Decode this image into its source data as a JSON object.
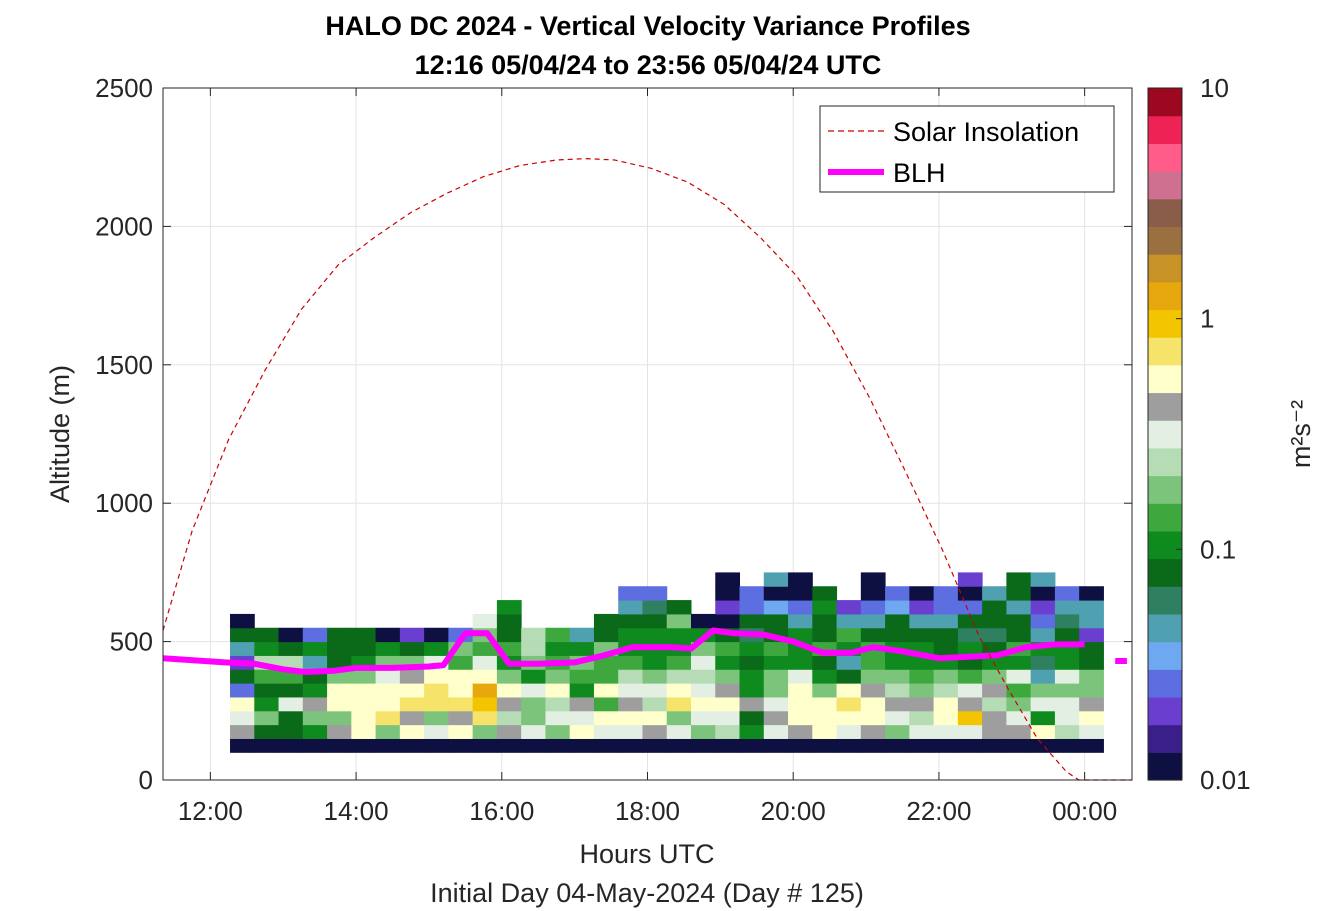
{
  "chart_data": {
    "type": "heatmap",
    "title": "HALO DC 2024 - Vertical Velocity Variance Profiles",
    "subtitle": "12:16 05/04/24 to 23:56 05/04/24  UTC",
    "xlabel": "Hours UTC",
    "footer": "Initial Day 04-May-2024 (Day # 125)",
    "ylabel": "Altitude (m)",
    "x_ticks": [
      "12:00",
      "14:00",
      "16:00",
      "18:00",
      "20:00",
      "22:00",
      "00:00"
    ],
    "x_tick_hours": [
      12,
      14,
      16,
      18,
      20,
      22,
      24
    ],
    "xlim_hours": [
      11.35,
      24.65
    ],
    "y_ticks": [
      "0",
      "500",
      "1000",
      "1500",
      "2000",
      "2500"
    ],
    "ylim": [
      0,
      2500
    ],
    "grid": true,
    "colorbar": {
      "label": "m²s⁻²",
      "scale": "log",
      "range": [
        0.01,
        10
      ],
      "ticks": [
        "0.01",
        "0.1",
        "1",
        "10"
      ],
      "colors": [
        "#0d1040",
        "#3a1f8a",
        "#6a3fd0",
        "#5c6ee0",
        "#6ea8f0",
        "#4fa0b0",
        "#2f8060",
        "#0a6a1a",
        "#0f8a1f",
        "#3ea83e",
        "#7cc47c",
        "#b5dcb5",
        "#e2efe2",
        "#9e9e9e",
        "#ffffcc",
        "#f6e36a",
        "#f3c400",
        "#e7a80e",
        "#c89326",
        "#9a7040",
        "#8a5d4a",
        "#d07090",
        "#ff5c8a",
        "#ee2255",
        "#9c0820"
      ]
    },
    "legend": {
      "placement": "top-right",
      "entries": [
        {
          "label": "Solar Insolation",
          "style": "dashed",
          "color": "#cc0000"
        },
        {
          "label": "BLH",
          "style": "solid-thick",
          "color": "#ff00ff"
        }
      ]
    },
    "heatmap": {
      "time_start_hours": 12.27,
      "time_bin_hours": 0.333,
      "altitude_start_m": 100,
      "altitude_bin_m": 50,
      "value_units": "m²s⁻²",
      "columns": [
        [
          0.01,
          0.4,
          0.3,
          0.5,
          0.03,
          0.08,
          0.02,
          0.05,
          0.09,
          0.01
        ],
        [
          0.01,
          0.08,
          0.2,
          0.12,
          0.07,
          0.15,
          0.25,
          0.1,
          0.09
        ],
        [
          0.01,
          0.07,
          0.09,
          0.3,
          0.07,
          0.15,
          0.25,
          0.09,
          0.01
        ],
        [
          0.01,
          0.12,
          0.2,
          0.4,
          0.1,
          0.07,
          0.05,
          0.12,
          0.03
        ],
        [
          0.01,
          0.4,
          0.2,
          0.6,
          0.5,
          0.2,
          0.08,
          0.07,
          0.09
        ],
        [
          0.01,
          0.5,
          0.6,
          0.6,
          0.5,
          0.2,
          0.1,
          0.07,
          0.08
        ],
        [
          0.01,
          0.2,
          0.8,
          0.6,
          0.6,
          0.3,
          0.2,
          0.1,
          0.01
        ],
        [
          0.01,
          0.6,
          0.4,
          0.7,
          0.6,
          0.4,
          0.2,
          0.07,
          0.02
        ],
        [
          0.01,
          0.3,
          0.2,
          0.8,
          0.7,
          0.6,
          0.3,
          0.1,
          0.01
        ],
        [
          0.01,
          0.5,
          0.4,
          0.8,
          0.6,
          0.6,
          0.15,
          0.2,
          0.03
        ],
        [
          0.01,
          0.2,
          0.8,
          0.9,
          1.3,
          0.5,
          0.3,
          0.15,
          0.2,
          0.3
        ],
        [
          0.01,
          0.4,
          0.25,
          0.4,
          0.6,
          0.2,
          0.1,
          0.15,
          0.09,
          0.08,
          0.1
        ],
        [
          0.01,
          0.3,
          0.2,
          0.2,
          0.3,
          0.1,
          0.2,
          0.23,
          0.23
        ],
        [
          0.01,
          0.2,
          0.3,
          0.25,
          0.5,
          0.2,
          0.15,
          0.12,
          0.15
        ],
        [
          0.01,
          0.6,
          0.3,
          0.4,
          0.12,
          0.15,
          0.2,
          0.1,
          0.05
        ],
        [
          0.01,
          0.3,
          0.5,
          0.15,
          0.5,
          0.15,
          0.15,
          0.2,
          0.07,
          0.07
        ],
        [
          0.01,
          0.35,
          0.6,
          0.4,
          0.3,
          0.25,
          0.15,
          0.12,
          0.1,
          0.08,
          0.04,
          0.03
        ],
        [
          0.01,
          0.4,
          0.5,
          0.25,
          0.35,
          0.2,
          0.1,
          0.1,
          0.1,
          0.09,
          0.06,
          0.025
        ],
        [
          0.01,
          0.35,
          0.2,
          0.8,
          0.6,
          0.25,
          0.15,
          0.1,
          0.1,
          0.2,
          0.07
        ],
        [
          0.01,
          0.2,
          0.3,
          0.6,
          0.3,
          0.25,
          0.3,
          0.2,
          0.1,
          0.01
        ],
        [
          0.01,
          0.25,
          0.3,
          0.5,
          0.4,
          0.2,
          0.1,
          0.15,
          0.09,
          0.01,
          0.02,
          0.01,
          0.01
        ],
        [
          0.01,
          0.1,
          0.08,
          0.4,
          0.12,
          0.1,
          0.09,
          0.1,
          0.06,
          0.09,
          0.03,
          0.03
        ],
        [
          0.01,
          0.3,
          0.4,
          0.3,
          0.2,
          0.2,
          0.12,
          0.15,
          0.07,
          0.09,
          0.035,
          0.01,
          0.04
        ],
        [
          0.01,
          0.4,
          0.5,
          0.6,
          0.5,
          0.3,
          0.1,
          0.12,
          0.1,
          0.05,
          0.03,
          0.01,
          0.01
        ],
        [
          0.01,
          0.5,
          0.5,
          0.6,
          0.2,
          0.12,
          0.09,
          0.15,
          0.09,
          0.07,
          0.12,
          0.09
        ],
        [
          0.01,
          0.3,
          0.5,
          0.8,
          0.6,
          0.07,
          0.04,
          0.12,
          0.15,
          0.05,
          0.02
        ],
        [
          0.01,
          0.4,
          0.6,
          0.6,
          0.4,
          0.2,
          0.15,
          0.15,
          0.09,
          0.05,
          0.03,
          0.01,
          0.01
        ],
        [
          0.01,
          0.2,
          0.3,
          0.4,
          0.25,
          0.2,
          0.1,
          0.12,
          0.07,
          0.09,
          0.035,
          0.03
        ],
        [
          0.01,
          0.3,
          0.25,
          0.45,
          0.2,
          0.15,
          0.12,
          0.1,
          0.07,
          0.05,
          0.02,
          0.01
        ],
        [
          0.01,
          0.3,
          0.6,
          0.6,
          0.25,
          0.2,
          0.1,
          0.09,
          0.09,
          0.05,
          0.03,
          0.03
        ],
        [
          0.01,
          0.3,
          0.9,
          0.4,
          0.3,
          0.15,
          0.08,
          0.12,
          0.06,
          0.08,
          0.03,
          0.01,
          0.02
        ],
        [
          0.01,
          0.4,
          0.4,
          0.25,
          0.4,
          0.2,
          0.12,
          0.07,
          0.06,
          0.08,
          0.07,
          0.04
        ],
        [
          0.01,
          0.4,
          0.3,
          0.2,
          0.15,
          0.3,
          0.1,
          0.15,
          0.09,
          0.07,
          0.05,
          0.08,
          0.08
        ],
        [
          0.01,
          0.6,
          0.12,
          0.3,
          0.2,
          0.05,
          0.06,
          0.12,
          0.05,
          0.03,
          0.02,
          0.01,
          0.05
        ],
        [
          0.01,
          0.25,
          0.35,
          0.35,
          0.2,
          0.3,
          0.12,
          0.1,
          0.09,
          0.06,
          0.04,
          0.03
        ],
        [
          0.01,
          0.35,
          0.6,
          0.4,
          0.2,
          0.2,
          0.08,
          0.08,
          0.02,
          0.04,
          0.04,
          0.01
        ]
      ]
    },
    "series": [
      {
        "name": "BLH",
        "x_hours": [
          11.35,
          12.2,
          12.6,
          13.0,
          13.3,
          13.7,
          14.0,
          14.5,
          15.0,
          15.2,
          15.5,
          15.8,
          16.1,
          16.5,
          17.0,
          17.4,
          17.8,
          18.3,
          18.6,
          18.9,
          19.2,
          19.6,
          20.0,
          20.4,
          20.8,
          21.1,
          21.5,
          22.0,
          22.4,
          22.8,
          23.2,
          23.6,
          24.0
        ],
        "y_m": [
          440,
          425,
          420,
          400,
          390,
          395,
          405,
          405,
          410,
          415,
          530,
          530,
          420,
          420,
          425,
          450,
          480,
          480,
          475,
          540,
          530,
          525,
          500,
          460,
          460,
          480,
          465,
          440,
          445,
          450,
          480,
          490,
          490
        ]
      },
      {
        "name": "BLH",
        "x_hours": [
          24.42,
          24.58
        ],
        "y_m": [
          430,
          430
        ]
      },
      {
        "name": "Solar Insolation",
        "x_hours": [
          11.35,
          11.75,
          12.25,
          12.75,
          13.25,
          13.75,
          14.25,
          14.75,
          15.25,
          15.75,
          16.25,
          16.75,
          17.15,
          17.55,
          18.05,
          18.55,
          19.05,
          19.55,
          20.05,
          20.55,
          21.05,
          21.55,
          22.05,
          22.55,
          22.95,
          23.35,
          23.75,
          23.92,
          24.65
        ],
        "y_m": [
          540,
          900,
          1230,
          1480,
          1700,
          1860,
          1960,
          2050,
          2120,
          2180,
          2220,
          2240,
          2245,
          2240,
          2210,
          2160,
          2080,
          1960,
          1820,
          1620,
          1380,
          1110,
          830,
          520,
          330,
          150,
          30,
          0,
          0
        ]
      }
    ]
  }
}
